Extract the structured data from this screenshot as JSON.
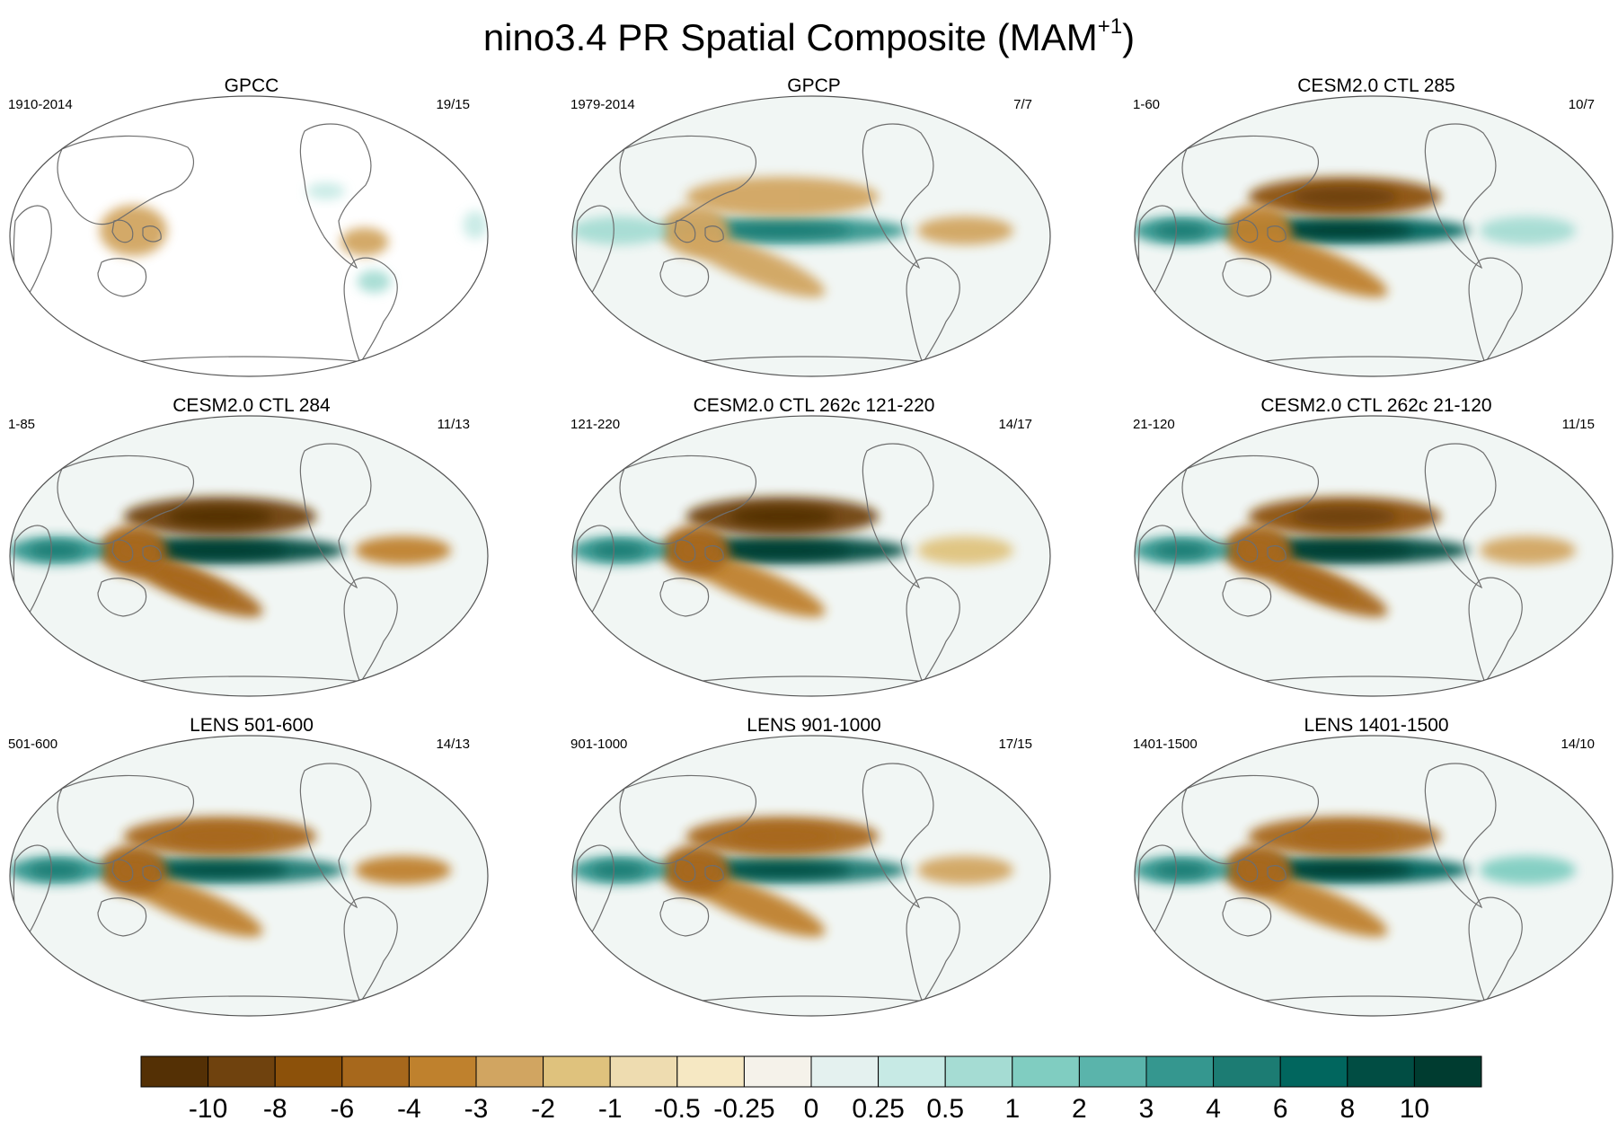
{
  "title": {
    "text": "nino3.4 PR Spatial Composite (MAM",
    "superscript": "+1",
    "suffix": ")"
  },
  "chart_data": {
    "type": "heatmap",
    "variable": "PR",
    "index": "nino3.4",
    "season": "MAM+1",
    "projection": "Robinson, Pacific-centered world map",
    "panels": [
      {
        "title": "GPCC",
        "years": "1910-2014",
        "ratio": "19/15",
        "coverage": "land",
        "features": [
          {
            "region": "maritime-continent",
            "value": -2
          },
          {
            "region": "northern-south-america",
            "value": -2
          },
          {
            "region": "southeast-south-america",
            "value": 1
          },
          {
            "region": "southern-north-america",
            "value": 0.5
          },
          {
            "region": "east-africa",
            "value": 0.5
          }
        ]
      },
      {
        "title": "GPCP",
        "years": "1979-2014",
        "ratio": "7/7",
        "coverage": "global",
        "features": [
          {
            "region": "central-pacific-equator",
            "value": 4
          },
          {
            "region": "north-subtropical-pacific",
            "value": -2
          },
          {
            "region": "spcz",
            "value": -2
          },
          {
            "region": "maritime-continent",
            "value": -2
          },
          {
            "region": "tropical-atlantic",
            "value": -2
          },
          {
            "region": "indian-ocean",
            "value": 1
          }
        ]
      },
      {
        "title": "CESM2.0 CTL 285",
        "years": "1-60",
        "ratio": "10/7",
        "coverage": "global",
        "features": [
          {
            "region": "central-pacific-equator",
            "value": 8
          },
          {
            "region": "north-subtropical-pacific",
            "value": -6
          },
          {
            "region": "spcz",
            "value": -3
          },
          {
            "region": "maritime-continent",
            "value": -3
          },
          {
            "region": "tropical-atlantic",
            "value": 1
          },
          {
            "region": "indian-ocean",
            "value": 4
          }
        ]
      },
      {
        "title": "CESM2.0 CTL 284",
        "years": "1-85",
        "ratio": "11/13",
        "coverage": "global",
        "features": [
          {
            "region": "central-pacific-equator",
            "value": 10
          },
          {
            "region": "north-subtropical-pacific",
            "value": -8
          },
          {
            "region": "spcz",
            "value": -4
          },
          {
            "region": "maritime-continent",
            "value": -4
          },
          {
            "region": "tropical-atlantic",
            "value": -3
          },
          {
            "region": "indian-ocean",
            "value": 4
          }
        ]
      },
      {
        "title": "CESM2.0 CTL 262c 121-220",
        "years": "121-220",
        "ratio": "14/17",
        "coverage": "global",
        "features": [
          {
            "region": "central-pacific-equator",
            "value": 10
          },
          {
            "region": "north-subtropical-pacific",
            "value": -8
          },
          {
            "region": "spcz",
            "value": -3
          },
          {
            "region": "maritime-continent",
            "value": -4
          },
          {
            "region": "tropical-atlantic",
            "value": -1
          },
          {
            "region": "indian-ocean",
            "value": 4
          }
        ]
      },
      {
        "title": "CESM2.0 CTL 262c 21-120",
        "years": "21-120",
        "ratio": "11/15",
        "coverage": "global",
        "features": [
          {
            "region": "central-pacific-equator",
            "value": 10
          },
          {
            "region": "north-subtropical-pacific",
            "value": -6
          },
          {
            "region": "spcz",
            "value": -4
          },
          {
            "region": "maritime-continent",
            "value": -4
          },
          {
            "region": "tropical-atlantic",
            "value": -2
          },
          {
            "region": "indian-ocean",
            "value": 4
          }
        ]
      },
      {
        "title": "LENS 501-600",
        "years": "501-600",
        "ratio": "14/13",
        "coverage": "global",
        "features": [
          {
            "region": "central-pacific-equator",
            "value": 6
          },
          {
            "region": "north-subtropical-pacific",
            "value": -4
          },
          {
            "region": "spcz",
            "value": -3
          },
          {
            "region": "maritime-continent",
            "value": -4
          },
          {
            "region": "tropical-atlantic",
            "value": -3
          },
          {
            "region": "indian-ocean",
            "value": 4
          }
        ]
      },
      {
        "title": "LENS 901-1000",
        "years": "901-1000",
        "ratio": "17/15",
        "coverage": "global",
        "features": [
          {
            "region": "central-pacific-equator",
            "value": 6
          },
          {
            "region": "north-subtropical-pacific",
            "value": -4
          },
          {
            "region": "spcz",
            "value": -3
          },
          {
            "region": "maritime-continent",
            "value": -4
          },
          {
            "region": "tropical-atlantic",
            "value": -2
          },
          {
            "region": "indian-ocean",
            "value": 4
          }
        ]
      },
      {
        "title": "LENS 1401-1500",
        "years": "1401-1500",
        "ratio": "14/10",
        "coverage": "global",
        "features": [
          {
            "region": "central-pacific-equator",
            "value": 8
          },
          {
            "region": "north-subtropical-pacific",
            "value": -4
          },
          {
            "region": "spcz",
            "value": -3
          },
          {
            "region": "maritime-continent",
            "value": -4
          },
          {
            "region": "tropical-atlantic",
            "value": 2
          },
          {
            "region": "indian-ocean",
            "value": 4
          }
        ]
      }
    ],
    "colorbar": {
      "levels": [
        "-10",
        "-8",
        "-6",
        "-4",
        "-3",
        "-2",
        "-1",
        "-0.5",
        "-0.25",
        "0",
        "0.25",
        "0.5",
        "1",
        "2",
        "3",
        "4",
        "6",
        "8",
        "10"
      ],
      "colors": [
        "#543005",
        "#6f420e",
        "#8c510a",
        "#a7681c",
        "#bf812d",
        "#d1a561",
        "#dfc27d",
        "#eedcb0",
        "#f6e8c3",
        "#f5f2ea",
        "#e4f1ef",
        "#c7eae5",
        "#a5dcd3",
        "#80cdc1",
        "#5ab4ab",
        "#35978f",
        "#1c7c73",
        "#01665e",
        "#014d43",
        "#003c30"
      ]
    }
  }
}
